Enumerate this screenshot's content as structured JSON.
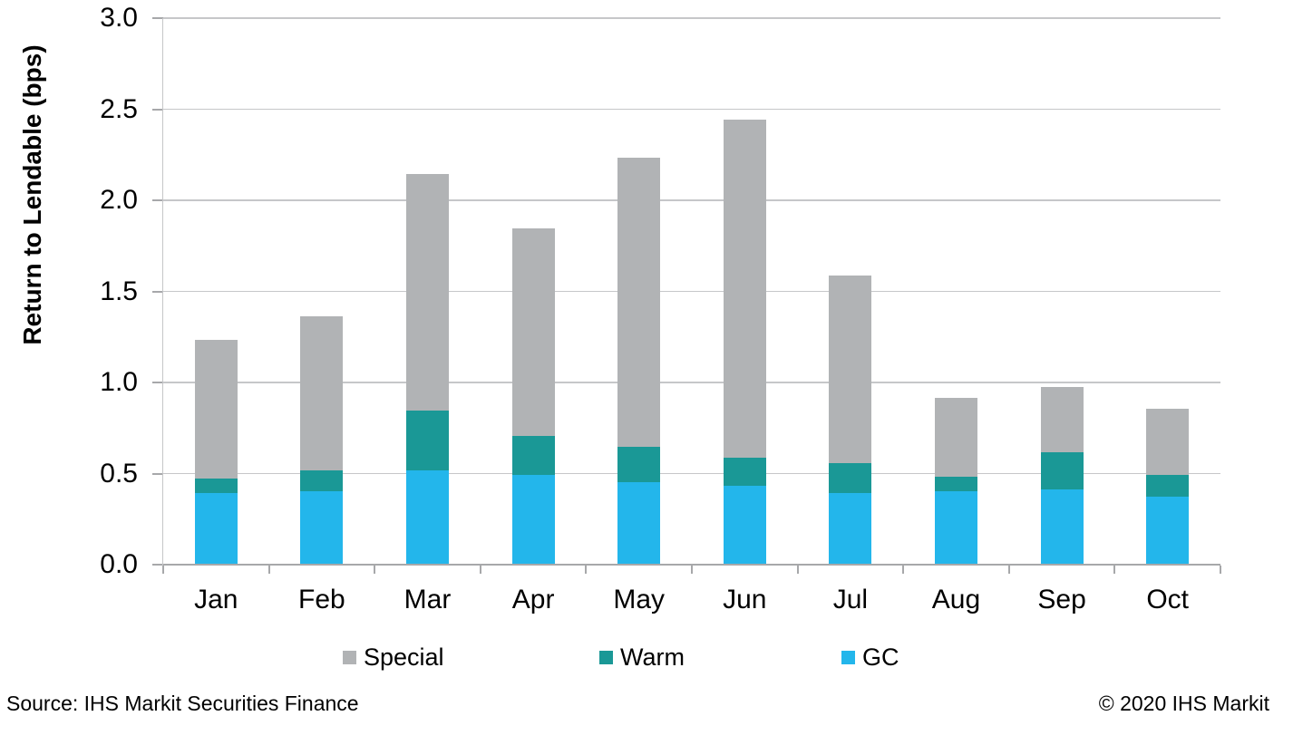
{
  "chart_data": {
    "type": "bar",
    "stacked": true,
    "title": "",
    "ylabel": "Return to Lendable (bps)",
    "xlabel": "",
    "ylim": [
      0,
      3.0
    ],
    "ytick_step": 0.5,
    "yticks": [
      "0.0",
      "0.5",
      "1.0",
      "1.5",
      "2.0",
      "2.5",
      "3.0"
    ],
    "grid": true,
    "legend_position": "bottom",
    "categories": [
      "Jan",
      "Feb",
      "Mar",
      "Apr",
      "May",
      "Jun",
      "Jul",
      "Aug",
      "Sep",
      "Oct"
    ],
    "series": [
      {
        "name": "Special",
        "color": "#b1b3b5",
        "values": [
          0.76,
          0.85,
          1.3,
          1.14,
          1.59,
          1.86,
          1.03,
          0.43,
          0.36,
          0.36
        ]
      },
      {
        "name": "Warm",
        "color": "#1a9896",
        "values": [
          0.08,
          0.11,
          0.33,
          0.21,
          0.19,
          0.15,
          0.16,
          0.08,
          0.2,
          0.12
        ]
      },
      {
        "name": "GC",
        "color": "#23b6eb",
        "values": [
          0.39,
          0.4,
          0.51,
          0.49,
          0.45,
          0.43,
          0.39,
          0.4,
          0.41,
          0.37
        ]
      }
    ],
    "stack_totals": [
      1.23,
      1.36,
      2.14,
      1.84,
      2.23,
      2.44,
      1.58,
      0.91,
      0.97,
      0.85
    ],
    "legend": [
      "Special",
      "Warm",
      "GC"
    ]
  },
  "colors": {
    "special": "#b1b3b5",
    "warm": "#1a9896",
    "gc": "#23b6eb",
    "gridline": "#c6c7c9",
    "axis": "#a7a8aa"
  },
  "footer": {
    "source": "Source: IHS Markit Securities Finance",
    "copyright": "© 2020 IHS Markit"
  }
}
